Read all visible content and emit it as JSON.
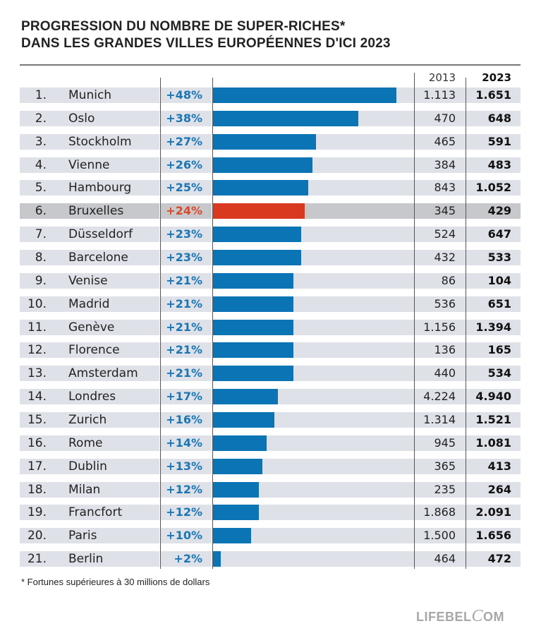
{
  "chart_data": {
    "type": "bar",
    "orientation": "horizontal",
    "title": "PROGRESSION DU NOMBRE DE SUPER-RICHES* DANS LES GRANDES VILLES EUROPÉENNES D'ICI 2023",
    "title_lines": [
      "PROGRESSION DU NOMBRE DE SUPER-RICHES*",
      "DANS LES GRANDES VILLES EUROPÉENNES D'ICI 2023"
    ],
    "columns": {
      "year_a": "2013",
      "year_b": "2023"
    },
    "highlight": "Bruxelles",
    "colors": {
      "bar": "#0b74b5",
      "highlight": "#d9391f",
      "pct_text": "#1a76b4",
      "highlight_pct_text": "#d84a2a",
      "band": "#dfe1e8",
      "highlight_band": "#c7c8cc"
    },
    "xlim": [
      0,
      48
    ],
    "rows": [
      {
        "rank": "1.",
        "city": "Munich",
        "pct_label": "+48%",
        "pct": 48,
        "v2013": "1.113",
        "v2023": "1.651"
      },
      {
        "rank": "2.",
        "city": "Oslo",
        "pct_label": "+38%",
        "pct": 38,
        "v2013": "470",
        "v2023": "648"
      },
      {
        "rank": "3.",
        "city": "Stockholm",
        "pct_label": "+27%",
        "pct": 27,
        "v2013": "465",
        "v2023": "591"
      },
      {
        "rank": "4.",
        "city": "Vienne",
        "pct_label": "+26%",
        "pct": 26,
        "v2013": "384",
        "v2023": "483"
      },
      {
        "rank": "5.",
        "city": "Hambourg",
        "pct_label": "+25%",
        "pct": 25,
        "v2013": "843",
        "v2023": "1.052"
      },
      {
        "rank": "6.",
        "city": "Bruxelles",
        "pct_label": "+24%",
        "pct": 24,
        "v2013": "345",
        "v2023": "429"
      },
      {
        "rank": "7.",
        "city": "Düsseldorf",
        "pct_label": "+23%",
        "pct": 23,
        "v2013": "524",
        "v2023": "647"
      },
      {
        "rank": "8.",
        "city": "Barcelone",
        "pct_label": "+23%",
        "pct": 23,
        "v2013": "432",
        "v2023": "533"
      },
      {
        "rank": "9.",
        "city": "Venise",
        "pct_label": "+21%",
        "pct": 21,
        "v2013": "86",
        "v2023": "104"
      },
      {
        "rank": "10.",
        "city": "Madrid",
        "pct_label": "+21%",
        "pct": 21,
        "v2013": "536",
        "v2023": "651"
      },
      {
        "rank": "11.",
        "city": "Genève",
        "pct_label": "+21%",
        "pct": 21,
        "v2013": "1.156",
        "v2023": "1.394"
      },
      {
        "rank": "12.",
        "city": "Florence",
        "pct_label": "+21%",
        "pct": 21,
        "v2013": "136",
        "v2023": "165"
      },
      {
        "rank": "13.",
        "city": "Amsterdam",
        "pct_label": "+21%",
        "pct": 21,
        "v2013": "440",
        "v2023": "534"
      },
      {
        "rank": "14.",
        "city": "Londres",
        "pct_label": "+17%",
        "pct": 17,
        "v2013": "4.224",
        "v2023": "4.940"
      },
      {
        "rank": "15.",
        "city": "Zurich",
        "pct_label": "+16%",
        "pct": 16,
        "v2013": "1.314",
        "v2023": "1.521"
      },
      {
        "rank": "16.",
        "city": "Rome",
        "pct_label": "+14%",
        "pct": 14,
        "v2013": "945",
        "v2023": "1.081"
      },
      {
        "rank": "17.",
        "city": "Dublin",
        "pct_label": "+13%",
        "pct": 13,
        "v2013": "365",
        "v2023": "413"
      },
      {
        "rank": "18.",
        "city": "Milan",
        "pct_label": "+12%",
        "pct": 12,
        "v2013": "235",
        "v2023": "264"
      },
      {
        "rank": "19.",
        "city": "Francfort",
        "pct_label": "+12%",
        "pct": 12,
        "v2013": "1.868",
        "v2023": "2.091"
      },
      {
        "rank": "20.",
        "city": "Paris",
        "pct_label": "+10%",
        "pct": 10,
        "v2013": "1.500",
        "v2023": "1.656"
      },
      {
        "rank": "21.",
        "city": "Berlin",
        "pct_label": "+2%",
        "pct": 2,
        "v2013": "464",
        "v2023": "472"
      }
    ],
    "footnote": "* Fortunes supérieures à 30 millions de dollars"
  },
  "brand": {
    "logo_left": "LIFEBEL",
    "logo_c": "C",
    "logo_right": "OM"
  }
}
